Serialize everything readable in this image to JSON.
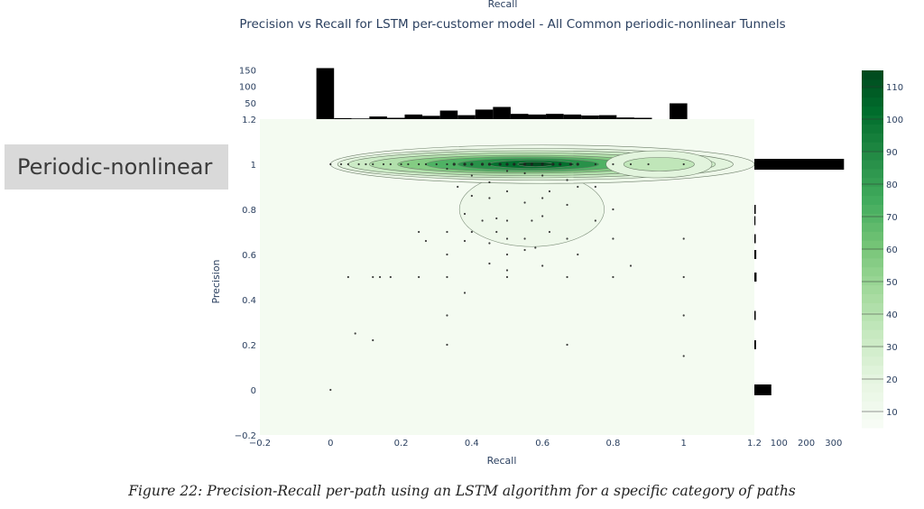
{
  "category_label": "Periodic-nonlinear",
  "caption": "Figure 22: Precision-Recall per-path using an LSTM algorithm for a specific category of paths",
  "chart_data": {
    "type": "scatter",
    "title": "Precision vs Recall for LSTM per-customer model - All Common periodic-nonlinear Tunnels",
    "top_axis_title": "Recall",
    "xlabel": "Recall",
    "ylabel": "Precision",
    "xlim": [
      -0.2,
      1.2
    ],
    "ylim": [
      -0.2,
      1.2
    ],
    "x_ticks": [
      "−0.2",
      "0",
      "0.2",
      "0.4",
      "0.6",
      "0.8",
      "1",
      "1.2"
    ],
    "y_ticks": [
      "−0.2",
      "0",
      "0.2",
      "0.4",
      "0.6",
      "0.8",
      "1",
      "1.2"
    ],
    "marginal_x": {
      "type": "histogram",
      "bin_edges": [
        -0.04,
        0.01,
        0.06,
        0.11,
        0.16,
        0.21,
        0.26,
        0.31,
        0.36,
        0.41,
        0.46,
        0.51,
        0.56,
        0.61,
        0.66,
        0.71,
        0.76,
        0.81,
        0.86,
        0.91,
        0.96,
        1.01,
        1.06
      ],
      "counts": [
        155,
        3,
        2,
        8,
        4,
        14,
        10,
        26,
        12,
        29,
        37,
        16,
        14,
        16,
        14,
        11,
        12,
        5,
        4,
        0,
        48,
        0
      ],
      "ticks": [
        "50",
        "100",
        "150"
      ]
    },
    "marginal_y": {
      "type": "histogram",
      "bins": [
        {
          "precision": 0,
          "count": 62
        },
        {
          "precision": 0.2,
          "count": 6
        },
        {
          "precision": 0.33,
          "count": 5
        },
        {
          "precision": 0.5,
          "count": 8
        },
        {
          "precision": 0.6,
          "count": 7
        },
        {
          "precision": 0.67,
          "count": 5
        },
        {
          "precision": 0.75,
          "count": 4
        },
        {
          "precision": 0.8,
          "count": 5
        },
        {
          "precision": 1,
          "count": 328
        }
      ],
      "ticks": [
        "100",
        "200",
        "300"
      ]
    },
    "colorscale": {
      "name": "Greens",
      "min": 5,
      "max": 115,
      "ticks": [
        10,
        20,
        30,
        40,
        50,
        60,
        70,
        80,
        90,
        100,
        110
      ]
    },
    "points": [
      [
        0,
        1
      ],
      [
        0.03,
        1
      ],
      [
        0.05,
        1
      ],
      [
        0.08,
        1
      ],
      [
        0.1,
        1
      ],
      [
        0.12,
        1
      ],
      [
        0.15,
        1
      ],
      [
        0.17,
        1
      ],
      [
        0.2,
        1
      ],
      [
        0.22,
        1
      ],
      [
        0.25,
        1
      ],
      [
        0.27,
        1
      ],
      [
        0.3,
        1
      ],
      [
        0.33,
        1
      ],
      [
        0.35,
        1
      ],
      [
        0.38,
        1
      ],
      [
        0.4,
        1
      ],
      [
        0.43,
        1
      ],
      [
        0.45,
        1
      ],
      [
        0.48,
        1
      ],
      [
        0.5,
        1
      ],
      [
        0.52,
        1
      ],
      [
        0.55,
        1
      ],
      [
        0.57,
        1
      ],
      [
        0.6,
        1
      ],
      [
        0.63,
        1
      ],
      [
        0.65,
        1
      ],
      [
        0.68,
        1
      ],
      [
        0.7,
        1
      ],
      [
        0.75,
        1
      ],
      [
        0.8,
        1
      ],
      [
        0.85,
        1
      ],
      [
        0.9,
        1
      ],
      [
        1,
        1
      ],
      [
        0.33,
        0.98
      ],
      [
        0.5,
        0.97
      ],
      [
        0.55,
        0.96
      ],
      [
        0.6,
        0.95
      ],
      [
        0.4,
        0.95
      ],
      [
        0.67,
        0.93
      ],
      [
        0.45,
        0.92
      ],
      [
        0.7,
        0.9
      ],
      [
        0.36,
        0.9
      ],
      [
        0.75,
        0.9
      ],
      [
        0.5,
        0.88
      ],
      [
        0.62,
        0.88
      ],
      [
        0.4,
        0.86
      ],
      [
        0.45,
        0.85
      ],
      [
        0.55,
        0.83
      ],
      [
        0.6,
        0.85
      ],
      [
        0.67,
        0.82
      ],
      [
        0.8,
        0.8
      ],
      [
        0.38,
        0.78
      ],
      [
        0.47,
        0.76
      ],
      [
        0.5,
        0.75
      ],
      [
        0.43,
        0.75
      ],
      [
        0.57,
        0.75
      ],
      [
        0.6,
        0.77
      ],
      [
        0.75,
        0.75
      ],
      [
        0.25,
        0.7
      ],
      [
        0.33,
        0.7
      ],
      [
        0.4,
        0.7
      ],
      [
        0.47,
        0.7
      ],
      [
        0.5,
        0.67
      ],
      [
        0.55,
        0.67
      ],
      [
        0.67,
        0.67
      ],
      [
        0.8,
        0.67
      ],
      [
        1,
        0.67
      ],
      [
        0.27,
        0.66
      ],
      [
        0.45,
        0.65
      ],
      [
        0.38,
        0.66
      ],
      [
        0.62,
        0.7
      ],
      [
        0.33,
        0.6
      ],
      [
        0.5,
        0.6
      ],
      [
        0.7,
        0.6
      ],
      [
        0.58,
        0.63
      ],
      [
        0.55,
        0.62
      ],
      [
        0.5,
        0.53
      ],
      [
        0.6,
        0.55
      ],
      [
        0.85,
        0.55
      ],
      [
        0.45,
        0.56
      ],
      [
        0.05,
        0.5
      ],
      [
        0.12,
        0.5
      ],
      [
        0.14,
        0.5
      ],
      [
        0.17,
        0.5
      ],
      [
        0.25,
        0.5
      ],
      [
        0.33,
        0.5
      ],
      [
        0.5,
        0.5
      ],
      [
        0.67,
        0.5
      ],
      [
        0.8,
        0.5
      ],
      [
        1,
        0.5
      ],
      [
        0.38,
        0.43
      ],
      [
        0.33,
        0.33
      ],
      [
        1,
        0.33
      ],
      [
        0.07,
        0.25
      ],
      [
        0.12,
        0.22
      ],
      [
        0.33,
        0.2
      ],
      [
        0.67,
        0.2
      ],
      [
        1,
        0.15
      ],
      [
        0,
        0
      ]
    ]
  }
}
